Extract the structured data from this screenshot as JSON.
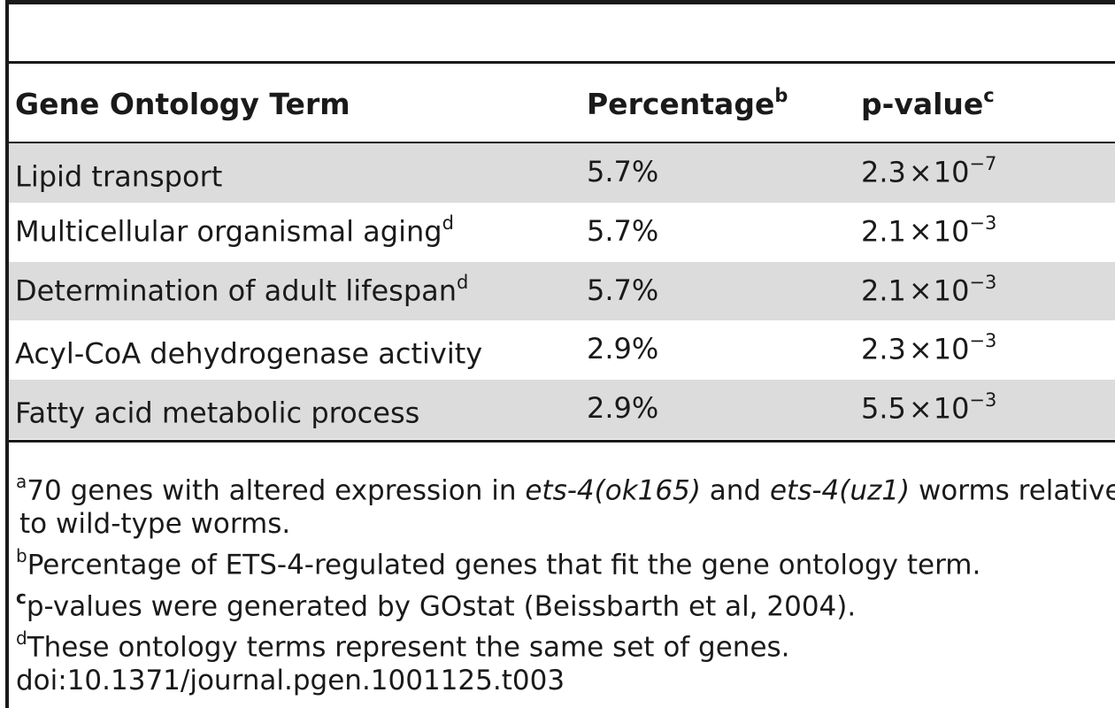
{
  "table": {
    "headers": {
      "term": "Gene Ontology Term",
      "term_mark": "",
      "percentage": "Percentage",
      "percentage_mark": "b",
      "pvalue": "p-value",
      "pvalue_mark": "c"
    },
    "rows": [
      {
        "term": "Lipid transport",
        "term_mark": "",
        "percentage": "5.7%",
        "pv_mantissa": "2.3",
        "pv_times": "×",
        "pv_base": "10",
        "pv_exponent": "−7"
      },
      {
        "term": "Multicellular organismal aging",
        "term_mark": "d",
        "percentage": "5.7%",
        "pv_mantissa": "2.1",
        "pv_times": "×",
        "pv_base": "10",
        "pv_exponent": "−3"
      },
      {
        "term": "Determination of adult lifespan",
        "term_mark": "d",
        "percentage": "5.7%",
        "pv_mantissa": "2.1",
        "pv_times": "×",
        "pv_base": "10",
        "pv_exponent": "−3"
      },
      {
        "term": "Acyl-CoA dehydrogenase activity",
        "term_mark": "",
        "percentage": "2.9%",
        "pv_mantissa": "2.3",
        "pv_times": "×",
        "pv_base": "10",
        "pv_exponent": "−3"
      },
      {
        "term": "Fatty acid metabolic process",
        "term_mark": "",
        "percentage": "2.9%",
        "pv_mantissa": "5.5",
        "pv_times": "×",
        "pv_base": "10",
        "pv_exponent": "−3"
      }
    ]
  },
  "footnotes": {
    "a": {
      "mark": "a",
      "part1": "70 genes with altered expression in ",
      "gene1": "ets-4(ok165)",
      "part2": " and ",
      "gene2": "ets-4(uz1)",
      "part3": " worms relative",
      "line2": "to wild-type worms."
    },
    "b": {
      "mark": "b",
      "text": "Percentage of ETS-4-regulated genes that fit the gene ontology term."
    },
    "c": {
      "mark": "c",
      "text": "p-values were generated by GOstat (Beissbarth et al, 2004)."
    },
    "d": {
      "mark": "d",
      "text": "These ontology terms represent the same set of genes."
    },
    "doi": "doi:10.1371/journal.pgen.1001125.t003"
  }
}
